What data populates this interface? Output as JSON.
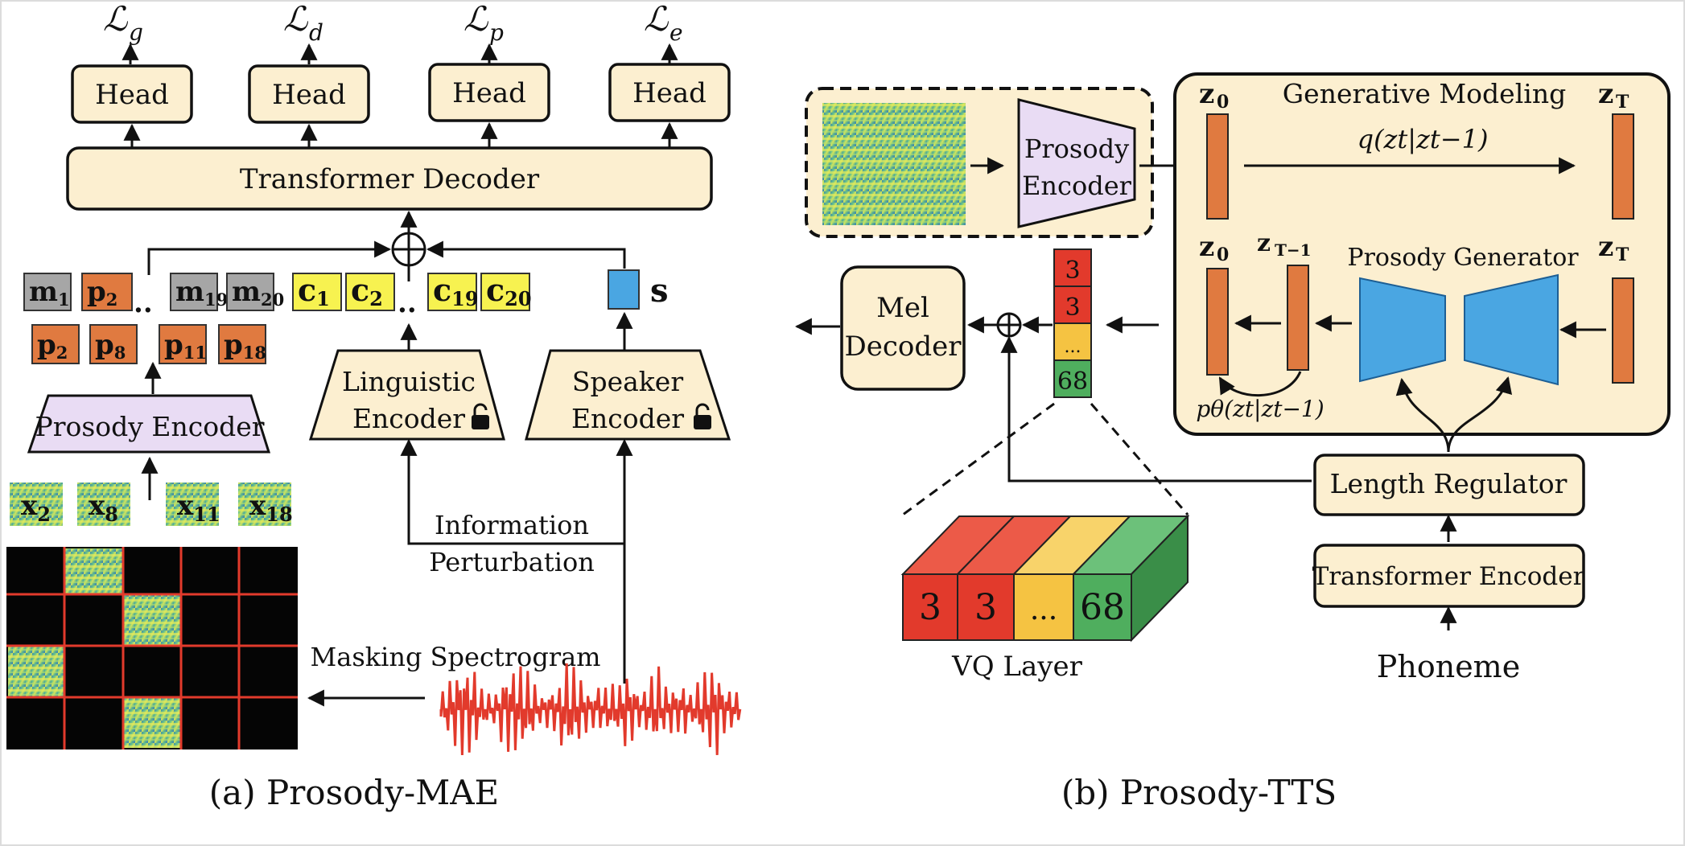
{
  "left": {
    "losses": [
      "ℒg",
      "ℒd",
      "ℒp",
      "ℒe"
    ],
    "loss_main": "ℒ",
    "loss_subs": [
      "g",
      "d",
      "p",
      "e"
    ],
    "head_label": "Head",
    "transformer_decoder": "Transformer Decoder",
    "mask_tokens": [
      {
        "base": "m",
        "sub": "1"
      },
      {
        "base": "p",
        "sub": "2"
      },
      {
        "base": "m",
        "sub": "19"
      },
      {
        "base": "m",
        "sub": "20"
      }
    ],
    "prosody_tokens": [
      {
        "base": "p",
        "sub": "2"
      },
      {
        "base": "p",
        "sub": "8"
      },
      {
        "base": "p",
        "sub": "11"
      },
      {
        "base": "p",
        "sub": "18"
      }
    ],
    "content_tokens": [
      {
        "base": "c",
        "sub": "1"
      },
      {
        "base": "c",
        "sub": "2"
      },
      {
        "base": "c",
        "sub": "19"
      },
      {
        "base": "c",
        "sub": "20"
      }
    ],
    "speaker_token": "s",
    "ellipsis": "..",
    "prosody_encoder": "Prosody Encoder",
    "linguistic_encoder": [
      "Linguistic",
      "Encoder"
    ],
    "speaker_encoder": [
      "Speaker",
      "Encoder"
    ],
    "patches": [
      {
        "base": "x",
        "sub": "2"
      },
      {
        "base": "x",
        "sub": "8"
      },
      {
        "base": "x",
        "sub": "11"
      },
      {
        "base": "x",
        "sub": "18"
      }
    ],
    "information_perturbation": [
      "Information",
      "Perturbation"
    ],
    "masking_spectrogram": "Masking Spectrogram",
    "caption": "(a) Prosody-MAE"
  },
  "right": {
    "prosody_encoder": [
      "Prosody",
      "Encoder"
    ],
    "generative_modeling": "Generative Modeling",
    "z0": "z",
    "z0_sub": "0",
    "zT_sub": "T",
    "zT1_sub": "T−1",
    "q_label": "q(zt|zt−1)",
    "p_label": "pθ(zt|zt−1)",
    "prosody_generator": "Prosody Generator",
    "mel_decoder": [
      "Mel",
      "Decoder"
    ],
    "vq_tokens": [
      "3",
      "3",
      "...",
      "68"
    ],
    "vq_layer": "VQ Layer",
    "length_regulator": "Length Regulator",
    "transformer_encoder": "Transformer Encoder",
    "phoneme": "Phoneme",
    "caption": "(b) Prosody-TTS"
  },
  "colors": {
    "box_fill": "#fcefd0",
    "encoder_fill": "#e9dcf4",
    "orange": "#e07a40",
    "gray": "#a6a6a6",
    "yellow": "#f7f250",
    "blue": "#4aa6e2",
    "red": "#e23a2c",
    "amber": "#f5c342",
    "green": "#4fae5e"
  }
}
